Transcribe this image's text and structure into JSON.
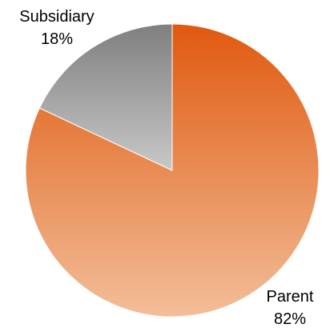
{
  "chart_data": {
    "type": "pie",
    "title": "",
    "slices": [
      {
        "label": "Parent",
        "value": 82,
        "percent_label": "82%",
        "color": "#E36A1E"
      },
      {
        "label": "Subsidiary",
        "value": 18,
        "percent_label": "18%",
        "color": "#9E9E9E"
      }
    ],
    "legend": "none",
    "gradients": {
      "Parent": {
        "top": "#E0590F",
        "bottom": "#F2BE99"
      },
      "Subsidiary": {
        "top": "#7F7F7F",
        "bottom": "#C8C8C8"
      }
    },
    "start_direction": "12 o'clock",
    "direction": "clockwise"
  }
}
